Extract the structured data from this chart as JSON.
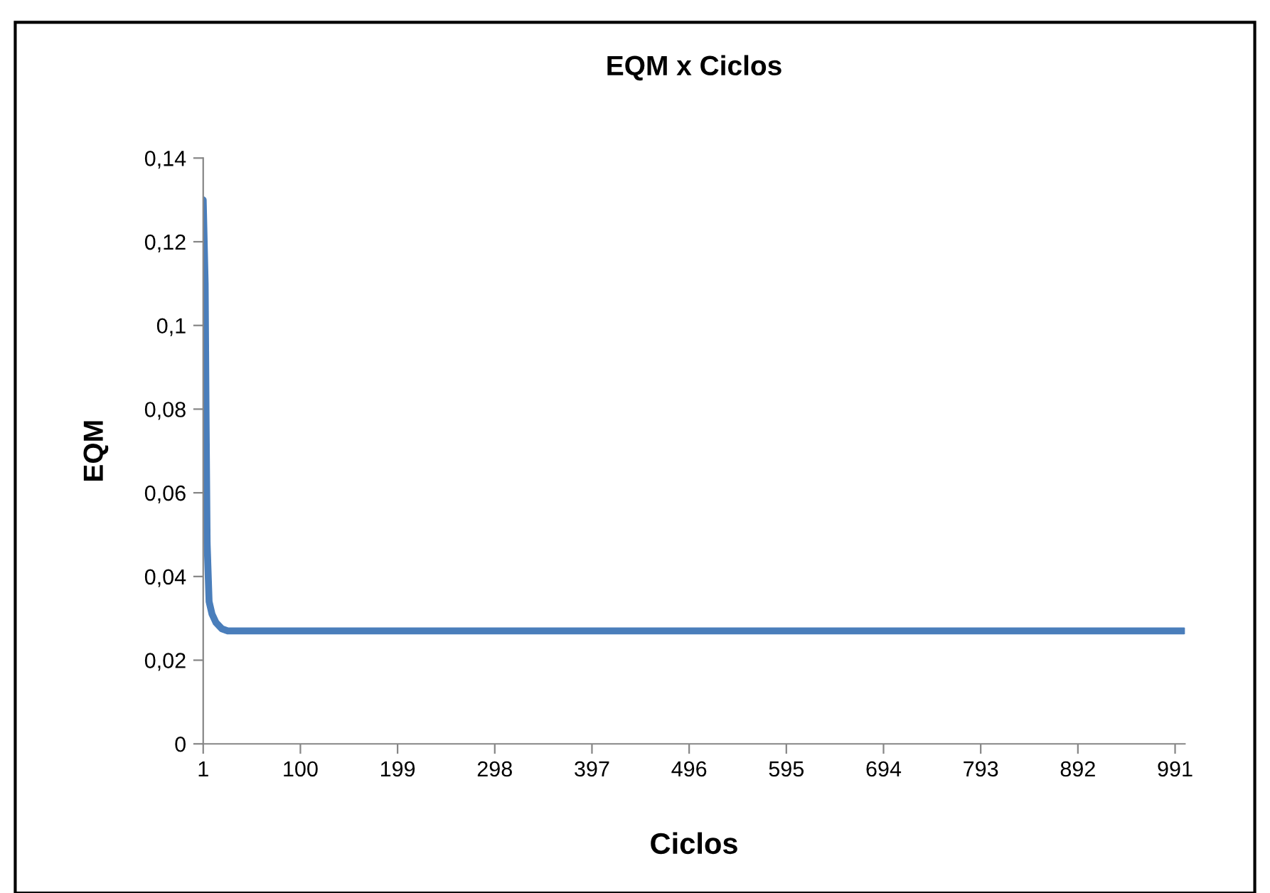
{
  "chart_data": {
    "type": "line",
    "title": "EQM x Ciclos",
    "xlabel": "Ciclos",
    "ylabel": "EQM",
    "series": [
      {
        "color": "#4a7ebb",
        "x": [
          1,
          3,
          4,
          5,
          7,
          10,
          14,
          20,
          26,
          40,
          100,
          300,
          500,
          700,
          1000
        ],
        "values": [
          0.13,
          0.11,
          0.076,
          0.048,
          0.034,
          0.031,
          0.029,
          0.0275,
          0.027,
          0.027,
          0.027,
          0.027,
          0.027,
          0.027,
          0.027
        ]
      }
    ],
    "xlim": [
      1,
      1001
    ],
    "xticks": [
      1,
      100,
      199,
      298,
      397,
      496,
      595,
      694,
      793,
      892,
      991
    ],
    "ylim": [
      0,
      0.14
    ],
    "yticks": [
      0,
      {
        "value": 0.02,
        "label": "0,02"
      },
      {
        "value": 0.04,
        "label": "0,04"
      },
      {
        "value": 0.06,
        "label": "0,06"
      },
      {
        "value": 0.08,
        "label": "0,08"
      },
      {
        "value": 0.1,
        "label": "0,1"
      },
      {
        "value": 0.12,
        "label": "0,12"
      },
      {
        "value": 0.14,
        "label": "0,14"
      }
    ],
    "grid": false,
    "legend": false,
    "marker": "none",
    "line_style": "solid"
  }
}
